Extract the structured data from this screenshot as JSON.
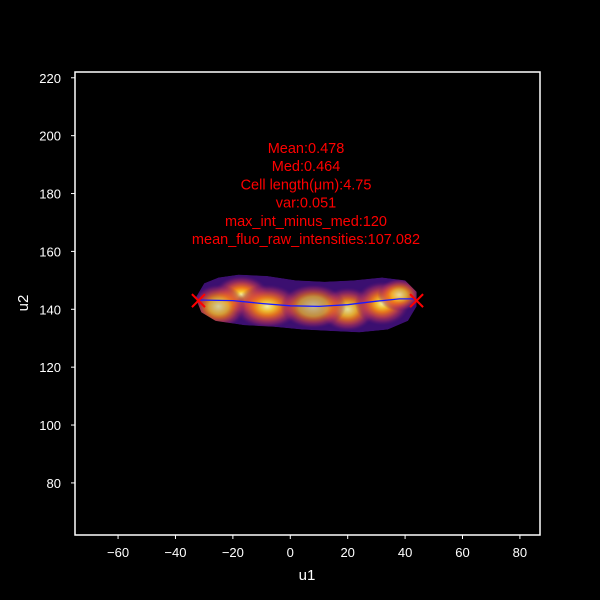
{
  "colors": {
    "figure_bg": "#000000",
    "axes_bg": "#000000",
    "frame": "#ffffff",
    "tick_text": "#ffffff",
    "annotation": "#ff0000",
    "centerline": "#1a1aff",
    "endpoint_marker": "#ff0000"
  },
  "chart_data": {
    "type": "scatter",
    "title": "",
    "xlabel": "u1",
    "ylabel": "u2",
    "xlim": [
      -75,
      87
    ],
    "ylim": [
      62,
      222
    ],
    "xticks": [
      -60,
      -40,
      -20,
      0,
      20,
      40,
      60,
      80
    ],
    "yticks": [
      80,
      100,
      120,
      140,
      160,
      180,
      200,
      220
    ],
    "grid": false,
    "colormap": "inferno",
    "annotation_lines": [
      "Mean:0.478",
      "Med:0.464",
      "Cell length(μm):4.75",
      "var:0.051",
      "max_int_minus_med:120",
      "mean_fluo_raw_intensities:107.082"
    ],
    "cell_outline": {
      "x": [
        -33,
        -30,
        -25,
        -18,
        -8,
        2,
        12,
        22,
        32,
        40,
        44,
        44,
        41,
        34,
        24,
        14,
        4,
        -6,
        -16,
        -26,
        -31,
        -33
      ],
      "y": [
        144,
        149,
        151,
        152,
        151.5,
        150,
        149.5,
        150,
        151,
        150,
        146,
        141,
        136,
        133,
        132,
        132.5,
        133,
        134,
        134.5,
        136,
        139,
        144
      ]
    },
    "intensity_blobs": [
      {
        "x": -17,
        "y": 145,
        "sx": 5,
        "sy": 3.5,
        "intensity": 1.0
      },
      {
        "x": -8,
        "y": 141,
        "sx": 6,
        "sy": 4,
        "intensity": 0.85
      },
      {
        "x": -25,
        "y": 141,
        "sx": 5,
        "sy": 4,
        "intensity": 0.55
      },
      {
        "x": 20,
        "y": 140,
        "sx": 5,
        "sy": 4,
        "intensity": 0.7
      },
      {
        "x": 32,
        "y": 142,
        "sx": 5,
        "sy": 4,
        "intensity": 0.9
      },
      {
        "x": 38,
        "y": 145,
        "sx": 4,
        "sy": 3,
        "intensity": 0.6
      },
      {
        "x": 8,
        "y": 141,
        "sx": 6,
        "sy": 4,
        "intensity": 0.35
      }
    ],
    "centerline": {
      "x": [
        -32,
        -20,
        -10,
        0,
        10,
        20,
        30,
        38,
        44
      ],
      "y": [
        143.2,
        143.0,
        142.0,
        141.2,
        141.0,
        141.6,
        142.8,
        143.6,
        143.6
      ]
    },
    "endpoints": {
      "x": [
        -32,
        44
      ],
      "y": [
        143,
        143
      ]
    }
  }
}
